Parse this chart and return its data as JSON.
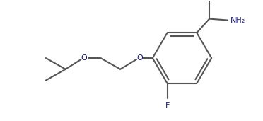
{
  "bg_color": "#ffffff",
  "line_color": "#555555",
  "text_color": "#1a1a6e",
  "line_width": 1.5,
  "fig_width": 3.72,
  "fig_height": 1.71,
  "dpi": 100,
  "F_label": "F",
  "NH2_label": "NH₂",
  "O_label1": "O",
  "O_label2": "O",
  "font_size": 7.5
}
